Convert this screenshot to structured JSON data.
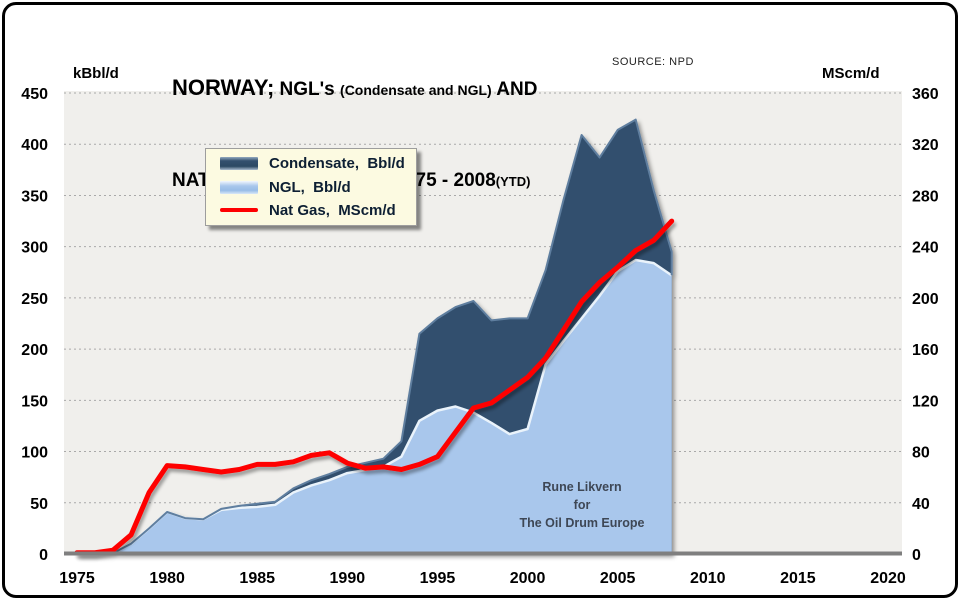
{
  "title": {
    "part1": "NORWAY;",
    "part2": " NGL's ",
    "part3": "(Condensate and NGL)",
    "part4": " AND",
    "line2": "NAT GAS PRODUCTION 1975 - 2008",
    "line2_suffix": "(YTD)",
    "source": "SOURCE: NPD"
  },
  "axes": {
    "left_unit": "kBbl/d",
    "right_unit": "MScm/d"
  },
  "legend": {
    "items": [
      {
        "label": "Condensate,  Bbl/d",
        "color": "#33506E",
        "swatch": "area"
      },
      {
        "label": "NGL,  Bbl/d",
        "color": "#A9C7EC",
        "swatch": "area"
      },
      {
        "label": "Nat Gas,  MScm/d",
        "color": "#FE0000",
        "swatch": "line"
      }
    ]
  },
  "watermark": {
    "line1": "Rune Likvern",
    "line2": "for",
    "line3": "The Oil Drum Europe"
  },
  "colors": {
    "condensate_fill": "#33506E",
    "condensate_edge": "#5E7E9F",
    "ngl_fill": "#A9C7EC",
    "ngl_edge": "#EAF3FB",
    "natgas_line": "#FE0000",
    "plot_background": "#F0EFEC",
    "gridline": "#A9A9A9",
    "baseline": "#7F7F7F",
    "legend_background": "#FCFAE1"
  },
  "chart_data": {
    "type": "area",
    "subtype": "stacked-area with secondary-axis line",
    "title": "NORWAY; NGL's (Condensate and NGL) AND NAT GAS PRODUCTION 1975 - 2008 (YTD)",
    "source": "SOURCE: NPD",
    "grid": "horizontal dashed",
    "legend_position": "inside top-left",
    "x": [
      1975,
      1976,
      1977,
      1978,
      1979,
      1980,
      1981,
      1982,
      1983,
      1984,
      1985,
      1986,
      1987,
      1988,
      1989,
      1990,
      1991,
      1992,
      1993,
      1994,
      1995,
      1996,
      1997,
      1998,
      1999,
      2000,
      2001,
      2002,
      2003,
      2004,
      2005,
      2006,
      2007,
      2008
    ],
    "x_axis": {
      "min": 1975,
      "max": 2020,
      "tick_step": 5,
      "ticks": [
        1975,
        1980,
        1985,
        1990,
        1995,
        2000,
        2005,
        2010,
        2015,
        2020
      ]
    },
    "y_left": {
      "label": "kBbl/d",
      "min": 0,
      "max": 450,
      "tick_step": 50,
      "ticks": [
        0,
        50,
        100,
        150,
        200,
        250,
        300,
        350,
        400,
        450
      ]
    },
    "y_right": {
      "label": "MScm/d",
      "min": 0,
      "max": 360,
      "tick_step": 40,
      "ticks": [
        0,
        40,
        80,
        120,
        160,
        200,
        240,
        280,
        320,
        360
      ]
    },
    "series": [
      {
        "name": "NGL,  Bbl/d",
        "type": "area",
        "stack_order": 1,
        "axis": "left",
        "color": "#A9C7EC",
        "values": [
          0,
          0,
          1,
          10,
          25,
          41,
          35,
          34,
          43,
          45,
          46,
          48,
          60,
          67,
          72,
          79,
          82,
          85,
          95,
          130,
          140,
          144,
          138,
          128,
          117,
          122,
          185,
          208,
          230,
          252,
          276,
          287,
          284,
          272
        ]
      },
      {
        "name": "Condensate,  Bbl/d",
        "type": "area",
        "stack_order": 2,
        "axis": "left",
        "color": "#33506E",
        "values": [
          0,
          0,
          0,
          0,
          0,
          0,
          0,
          0,
          1,
          2,
          3,
          3,
          4,
          5,
          6,
          6,
          7,
          8,
          15,
          85,
          90,
          97,
          109,
          100,
          113,
          108,
          92,
          138,
          179,
          135,
          138,
          137,
          71,
          23
        ]
      },
      {
        "name": "Nat Gas,  MScm/d",
        "type": "line",
        "axis": "right",
        "color": "#FE0000",
        "values": [
          1,
          1,
          3,
          15,
          48,
          69,
          68,
          66,
          64,
          66,
          70,
          70,
          72,
          77,
          79,
          71,
          67,
          68,
          66,
          70,
          76,
          95,
          114,
          118,
          128,
          138,
          153,
          175,
          197,
          212,
          224,
          237,
          245,
          260
        ]
      }
    ]
  }
}
